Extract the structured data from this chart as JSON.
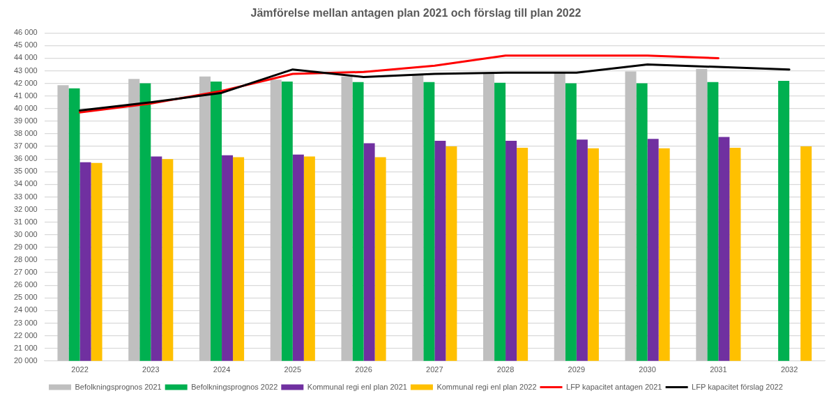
{
  "chart_data": {
    "type": "bar",
    "title": "Jämförelse mellan antagen plan 2021 och förslag till plan 2022",
    "categories": [
      "2022",
      "2023",
      "2024",
      "2025",
      "2026",
      "2027",
      "2028",
      "2029",
      "2030",
      "2031",
      "2032"
    ],
    "series": [
      {
        "name": "Befolkningsprognos 2021",
        "color": "#bfbfbf",
        "values": [
          41850,
          42350,
          42550,
          42300,
          42550,
          42650,
          42800,
          42800,
          42950,
          43150,
          null
        ]
      },
      {
        "name": "Befolkningsprognos 2022",
        "color": "#00b050",
        "values": [
          41600,
          42000,
          42150,
          42150,
          42100,
          42100,
          42050,
          42000,
          42000,
          42100,
          42200
        ]
      },
      {
        "name": "Kommunal regi enl plan 2021",
        "color": "#7030a0",
        "values": [
          35750,
          36200,
          36300,
          36350,
          37250,
          37450,
          37450,
          37550,
          37600,
          37750,
          null
        ]
      },
      {
        "name": "Kommunal regi enl plan 2022",
        "color": "#ffc000",
        "values": [
          35700,
          36000,
          36150,
          36200,
          36150,
          37000,
          36900,
          36850,
          36850,
          36900,
          37000
        ]
      },
      {
        "name": "LFP kapacitet antagen 2021",
        "type": "line",
        "color": "#ff0000",
        "values": [
          39700,
          40400,
          41400,
          42750,
          42900,
          43400,
          44200,
          44200,
          44200,
          44000,
          null
        ]
      },
      {
        "name": "LFP kapacitet förslag 2022",
        "type": "line",
        "color": "#000000",
        "values": [
          39850,
          40500,
          41250,
          43100,
          42500,
          42750,
          42850,
          42850,
          43500,
          43300,
          43100
        ]
      }
    ],
    "ylim": [
      20000,
      46000
    ],
    "yticks": [
      {
        "value": 20000,
        "label": "20 000"
      },
      {
        "value": 21000,
        "label": "21 000"
      },
      {
        "value": 22000,
        "label": "22 000"
      },
      {
        "value": 23000,
        "label": "23 000"
      },
      {
        "value": 24000,
        "label": "24 000"
      },
      {
        "value": 25000,
        "label": "25 000"
      },
      {
        "value": 26000,
        "label": "26 000"
      },
      {
        "value": 27000,
        "label": "27 000"
      },
      {
        "value": 28000,
        "label": "28 000"
      },
      {
        "value": 29000,
        "label": "29 000"
      },
      {
        "value": 30000,
        "label": "30 000"
      },
      {
        "value": 31000,
        "label": "31 000"
      },
      {
        "value": 32000,
        "label": "32 000"
      },
      {
        "value": 33000,
        "label": "33 000"
      },
      {
        "value": 34000,
        "label": "34 000"
      },
      {
        "value": 35000,
        "label": "35 000"
      },
      {
        "value": 36000,
        "label": "36 000"
      },
      {
        "value": 37000,
        "label": "37 000"
      },
      {
        "value": 38000,
        "label": "38 000"
      },
      {
        "value": 39000,
        "label": "39 000"
      },
      {
        "value": 40000,
        "label": "40 000"
      },
      {
        "value": 41000,
        "label": "41 000"
      },
      {
        "value": 42000,
        "label": "42 000"
      },
      {
        "value": 43000,
        "label": "43 000"
      },
      {
        "value": 44000,
        "label": "44 000"
      },
      {
        "value": 45000,
        "label": "45 000"
      },
      {
        "value": 46000,
        "label": "46 000"
      }
    ],
    "grid": "y",
    "legend": "bottom",
    "marker": "none",
    "line_style": "solid"
  }
}
